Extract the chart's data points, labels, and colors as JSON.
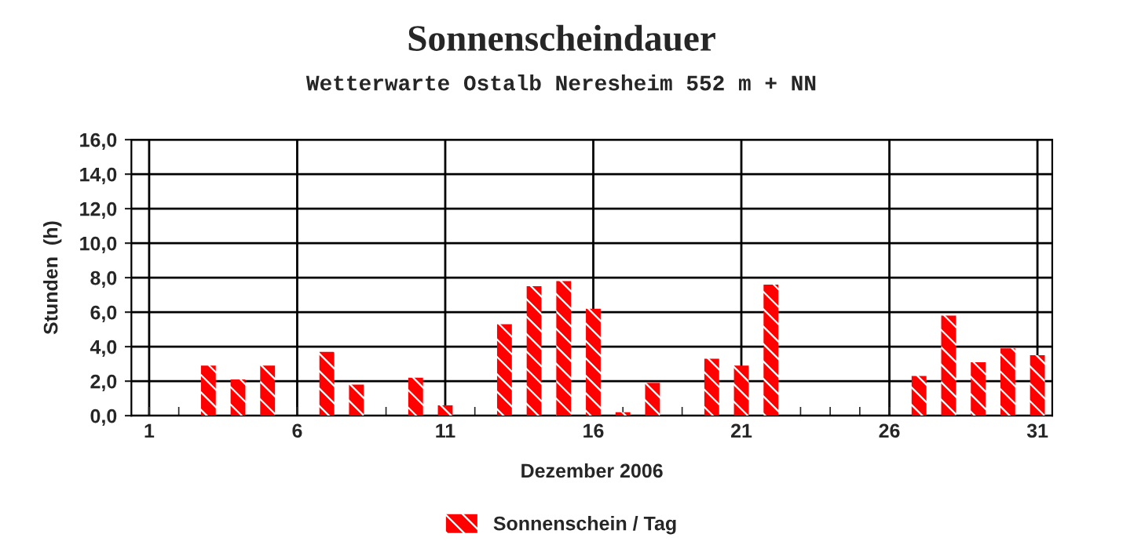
{
  "chart_data": {
    "type": "bar",
    "title": "Sonnenscheindauer",
    "subtitle": "Wetterwarte Ostalb Neresheim 552 m + NN",
    "xlabel": "Dezember 2006",
    "ylabel": "Stunden  (h)",
    "categories": [
      "1",
      null,
      null,
      null,
      null,
      "6",
      null,
      null,
      null,
      null,
      "11",
      null,
      null,
      null,
      null,
      "16",
      null,
      null,
      null,
      null,
      "21",
      null,
      null,
      null,
      null,
      "26",
      null,
      null,
      null,
      null,
      "31"
    ],
    "series": [
      {
        "name": "Sonnenschein / Tag",
        "color": "#ff0000",
        "values": [
          null,
          null,
          2.9,
          2.1,
          2.9,
          null,
          3.7,
          1.8,
          null,
          2.2,
          0.6,
          null,
          5.3,
          7.5,
          7.8,
          6.2,
          0.2,
          1.9,
          null,
          3.3,
          2.9,
          7.6,
          null,
          null,
          null,
          null,
          2.3,
          5.8,
          3.1,
          3.9,
          3.5
        ]
      }
    ],
    "ylim": [
      0,
      16
    ],
    "yticks": [
      {
        "value": 0,
        "label": "0,0"
      },
      {
        "value": 2,
        "label": "2,0"
      },
      {
        "value": 4,
        "label": "4,0"
      },
      {
        "value": 6,
        "label": "6,0"
      },
      {
        "value": 8,
        "label": "8,0"
      },
      {
        "value": 10,
        "label": "10,0"
      },
      {
        "value": 12,
        "label": "12,0"
      },
      {
        "value": 14,
        "label": "14,0"
      },
      {
        "value": 16,
        "label": "16,0"
      }
    ],
    "grid": true,
    "legend": "bottom"
  }
}
